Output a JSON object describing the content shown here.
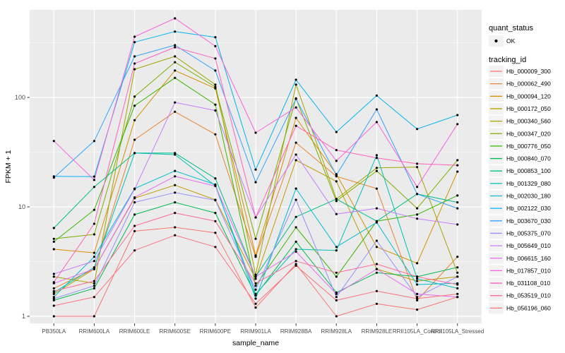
{
  "colors": {
    "page_bg": "#FFFFFF",
    "panel_bg": "#EBEBEB",
    "grid": "#FFFFFF",
    "tick_mark": "#333333",
    "tick_label": "#4D4D4D",
    "point": "#000000",
    "legend_key_bg": "#F2F2F2"
  },
  "legend": {
    "quant_title": "quant_status",
    "quant_items": [
      "OK"
    ],
    "tracking_title": "tracking_id"
  },
  "chart_data": {
    "type": "line",
    "title": "",
    "xlabel": "sample_name",
    "ylabel": "FPKM + 1",
    "y_scale": "log10",
    "y_ticks": [
      1,
      10,
      100
    ],
    "y_minor_ticks": [
      3.162,
      31.62,
      316.2
    ],
    "ylim": [
      0.87,
      631
    ],
    "grid": true,
    "legend_position": "right",
    "point_marker": "black-dot",
    "quant_status_all": "OK",
    "categories": [
      "PB350LA",
      "RRIM600LA",
      "RRIM600LE",
      "RRIM600SE",
      "RRIM600PE",
      "RRIM901LA",
      "RRIM928BA",
      "RRIM928LA",
      "RRIM928LE",
      "RRII105LA_Control",
      "RRII105LA_Stressed"
    ],
    "series": [
      {
        "name": "Hb_000009_300",
        "color": "#F8766D",
        "quant_status": "OK",
        "values": [
          1.0,
          1.0,
          6.0,
          6.5,
          5.8,
          1.2,
          3.0,
          1.0,
          1.3,
          1.15,
          1.5
        ]
      },
      {
        "name": "Hb_000062_490",
        "color": "#EA8331",
        "quant_status": "OK",
        "values": [
          1.8,
          2.7,
          41,
          74,
          46,
          3.5,
          38.6,
          19,
          14.7,
          1.4,
          3.5
        ]
      },
      {
        "name": "Hb_000094_120",
        "color": "#D89000",
        "quant_status": "OK",
        "values": [
          4.1,
          3.8,
          62,
          176,
          121,
          3.6,
          65,
          19.9,
          4.3,
          3.05,
          21
        ]
      },
      {
        "name": "Hb_000172_050",
        "color": "#C09B00",
        "quant_status": "OK",
        "values": [
          1.6,
          2.7,
          12,
          15.8,
          11.6,
          2.2,
          26.7,
          17.1,
          2.7,
          2.1,
          2.3
        ]
      },
      {
        "name": "Hb_000340_560",
        "color": "#A3A500",
        "quant_status": "OK",
        "values": [
          2.3,
          2.0,
          181,
          237,
          131,
          2.4,
          131,
          11.8,
          22.7,
          23.1,
          2.5
        ]
      },
      {
        "name": "Hb_000347_020",
        "color": "#7CAE00",
        "quant_status": "OK",
        "values": [
          5.1,
          5.6,
          102,
          210,
          125,
          5.1,
          98,
          11.3,
          21.3,
          9.7,
          26.7
        ]
      },
      {
        "name": "Hb_000776_050",
        "color": "#39B600",
        "quant_status": "OK",
        "values": [
          4.8,
          9.4,
          84,
          151,
          86,
          1.9,
          6.5,
          2.3,
          7.4,
          8.5,
          12.7
        ]
      },
      {
        "name": "Hb_000840_070",
        "color": "#00BB4E",
        "quant_status": "OK",
        "values": [
          1.4,
          1.8,
          8.5,
          11,
          8.8,
          1.55,
          4.8,
          1.65,
          2.5,
          2.3,
          2.8
        ]
      },
      {
        "name": "Hb_000853_100",
        "color": "#00C087",
        "quant_status": "OK",
        "values": [
          6.4,
          15.2,
          31,
          31,
          18.2,
          2.3,
          8.1,
          11.8,
          7.4,
          13.1,
          11
        ]
      },
      {
        "name": "Hb_001329_080",
        "color": "#00C0B2",
        "quant_status": "OK",
        "values": [
          1.65,
          2.8,
          31,
          30,
          15.6,
          1.6,
          4.1,
          4.0,
          29.6,
          2.2,
          1.8
        ]
      },
      {
        "name": "Hb_002030_180",
        "color": "#00BDD0",
        "quant_status": "OK",
        "values": [
          1.5,
          3.5,
          14.7,
          21.3,
          16,
          1.45,
          14.7,
          4.3,
          7.2,
          1.95,
          2.0
        ]
      },
      {
        "name": "Hb_002122_030",
        "color": "#00B4EF",
        "quant_status": "OK",
        "values": [
          19,
          18.9,
          320,
          400,
          355,
          21.9,
          145,
          48.3,
          104,
          51.5,
          69
        ]
      },
      {
        "name": "Hb_003670_030",
        "color": "#35A2FF",
        "quant_status": "OK",
        "values": [
          18.5,
          40,
          237,
          300,
          176,
          16.8,
          97,
          19.5,
          77.7,
          13.1,
          9.7
        ]
      },
      {
        "name": "Hb_005375_070",
        "color": "#9590FF",
        "quant_status": "OK",
        "values": [
          1.45,
          1.9,
          11,
          13.5,
          11.5,
          1.75,
          11.6,
          1.5,
          4.9,
          1.5,
          2.3
        ]
      },
      {
        "name": "Hb_005649_010",
        "color": "#C77CFF",
        "quant_status": "OK",
        "values": [
          2.44,
          3.2,
          14.5,
          90,
          76,
          8.0,
          30,
          8.6,
          9.7,
          7.8,
          6.9
        ]
      },
      {
        "name": "Hb_006615_160",
        "color": "#E76BF3",
        "quant_status": "OK",
        "values": [
          2.0,
          2.7,
          12.2,
          19,
          15.5,
          2.3,
          3.9,
          1.6,
          2.7,
          1.6,
          1.5
        ]
      },
      {
        "name": "Hb_017857_010",
        "color": "#FA62DB",
        "quant_status": "OK",
        "values": [
          40,
          17.6,
          359,
          528,
          294,
          47.6,
          81,
          26.3,
          59.5,
          15.2,
          57
        ]
      },
      {
        "name": "Hb_031108_010",
        "color": "#FF62BC",
        "quant_status": "OK",
        "values": [
          2.05,
          7.0,
          204,
          287,
          227,
          8.0,
          55,
          33,
          28,
          24.8,
          24
        ]
      },
      {
        "name": "Hb_053519_010",
        "color": "#FF6A98",
        "quant_status": "OK",
        "values": [
          1.7,
          2.1,
          6.7,
          8.8,
          7.4,
          2.0,
          3.2,
          2.5,
          3.0,
          2.3,
          1.95
        ]
      },
      {
        "name": "Hb_056196_060",
        "color": "#FC717F",
        "quant_status": "OK",
        "values": [
          1.25,
          1.5,
          4.0,
          5.5,
          4.3,
          1.3,
          2.9,
          1.4,
          1.7,
          1.45,
          1.6
        ]
      }
    ]
  }
}
